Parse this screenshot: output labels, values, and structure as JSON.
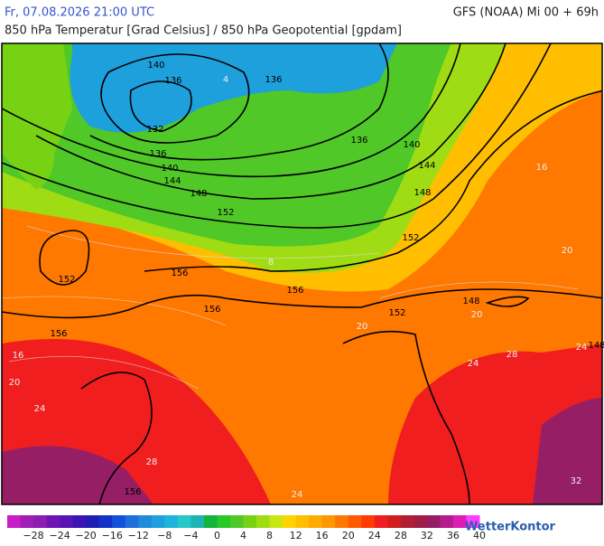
{
  "header": {
    "datetime": "Fr, 07.08.2026 21:00 UTC",
    "model": "GFS (NOAA) Mi 00 + 69h",
    "subtitle": "850 hPa Temperatur [Grad Celsius] / 850 hPa Geopotential [gpdam]"
  },
  "map": {
    "geopotential_labels": [
      "140",
      "136",
      "132",
      "136",
      "140",
      "144",
      "148",
      "152",
      "136",
      "136",
      "140",
      "144",
      "148",
      "152",
      "152",
      "156",
      "156",
      "156",
      "152",
      "148",
      "148",
      "156",
      "156"
    ],
    "temperature_labels": [
      "16",
      "20",
      "24",
      "28",
      "24",
      "24",
      "28",
      "24",
      "32",
      "20",
      "20",
      "20",
      "16",
      "4",
      "8"
    ]
  },
  "legend": {
    "labels": [
      "−28",
      "−24",
      "−20",
      "−16",
      "−12",
      "−8",
      "−4",
      "0",
      "4",
      "8",
      "12",
      "16",
      "20",
      "24",
      "28",
      "32",
      "36",
      "40"
    ],
    "colors": [
      "#c81ec8",
      "#a01eb4",
      "#8c1eb4",
      "#6e14b4",
      "#5a14b4",
      "#3c14b4",
      "#1e1eb4",
      "#1432c8",
      "#1450dc",
      "#1e6edc",
      "#1e8cdc",
      "#1ea0dc",
      "#1eb4dc",
      "#28c8c8",
      "#1eb4b4",
      "#14b43c",
      "#28c828",
      "#50c828",
      "#78d214",
      "#a0dc14",
      "#c8e614",
      "#ffd200",
      "#ffbe00",
      "#ffaa00",
      "#ff9600",
      "#ff7800",
      "#ff5a00",
      "#ff3c00",
      "#f01e1e",
      "#d21e1e",
      "#b41e32",
      "#a01e46",
      "#961e64",
      "#b41e8c",
      "#dc1eb4",
      "#ff3cff"
    ]
  },
  "logo": "WetterKontor"
}
